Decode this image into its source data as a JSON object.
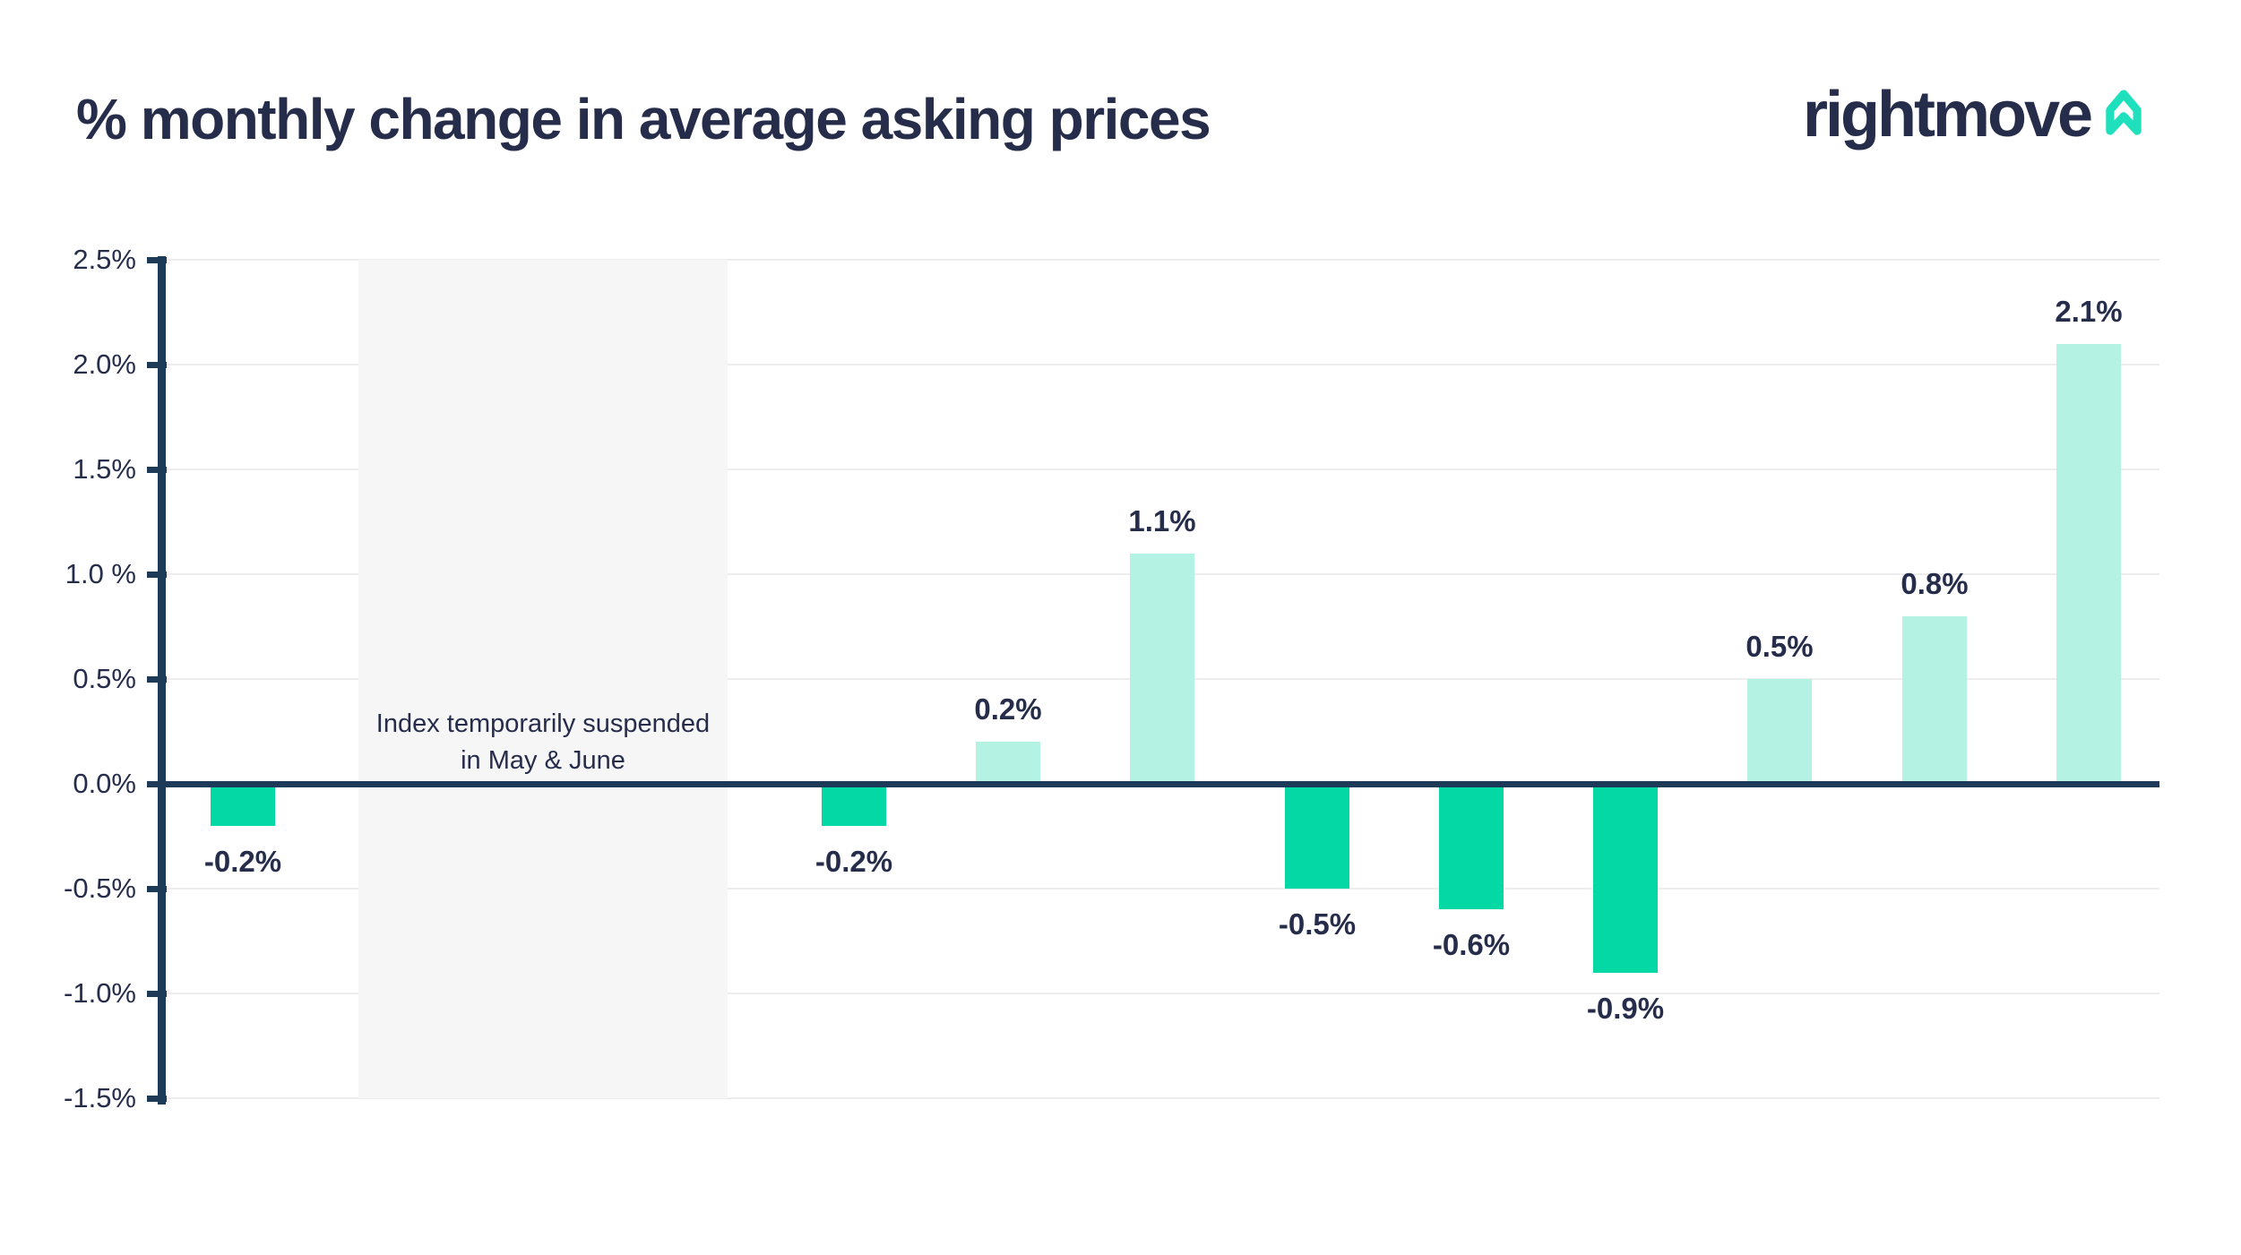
{
  "header": {
    "title": "% monthly change in average asking prices",
    "logo_text": "rightmove"
  },
  "colors": {
    "navy_text": "#262D4B",
    "axis": "#1E3A59",
    "gridline": "#EDEDED",
    "band_bg": "#F7F6F7",
    "bar_negative": "#04D9A6",
    "bar_positive": "#B4F2E4",
    "logo_teal": "#1FE0BC"
  },
  "chart_data": {
    "type": "bar",
    "title": "% monthly change in average asking prices",
    "xlabel": "",
    "ylabel": "",
    "ylim": [
      -1.5,
      2.5
    ],
    "ytick_step": 0.5,
    "yticks": [
      "2.5%",
      "2.0%",
      "1.5%",
      "1.0 %",
      "0.5%",
      "0.0%",
      "-0.5%",
      "-1.0%",
      "-1.5%"
    ],
    "grid": true,
    "legend": false,
    "values": [
      -0.2,
      -0.2,
      0.2,
      1.1,
      -0.5,
      -0.6,
      -0.9,
      0.5,
      0.8,
      2.1
    ],
    "labels": [
      "-0.2%",
      "-0.2%",
      "0.2%",
      "1.1%",
      "-0.5%",
      "-0.6%",
      "-0.9%",
      "0.5%",
      "0.8%",
      "2.1%"
    ],
    "annotation": {
      "line1": "Index temporarily suspended",
      "line2": "in May & June"
    }
  }
}
